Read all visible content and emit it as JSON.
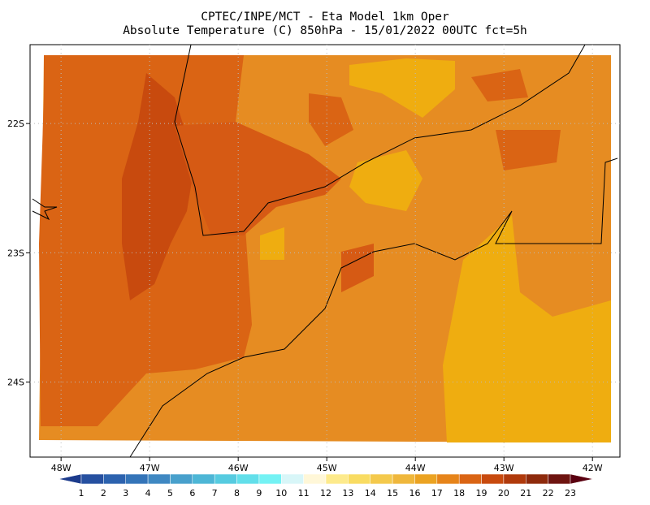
{
  "header": {
    "title": "CPTEC/INPE/MCT -  Eta Model 1km Oper",
    "subtitle": "Absolute Temperature (C) 850hPa - 15/01/2022 00UTC fct=5h"
  },
  "map": {
    "lonlim": [
      -48.35,
      -41.69
    ],
    "latlim": [
      -21.39,
      -24.58
    ],
    "lon_ticks": [
      {
        "value": -48,
        "label": "48W"
      },
      {
        "value": -47,
        "label": "47W"
      },
      {
        "value": -46,
        "label": "46W"
      },
      {
        "value": -45,
        "label": "45W"
      },
      {
        "value": -44,
        "label": "44W"
      },
      {
        "value": -43,
        "label": "43W"
      },
      {
        "value": -42,
        "label": "42W"
      }
    ],
    "lat_ticks": [
      {
        "value": -22,
        "label": "22S"
      },
      {
        "value": -23,
        "label": "23S"
      },
      {
        "value": -24,
        "label": "24S"
      }
    ],
    "grid": true
  },
  "colorbar": {
    "labels": [
      1,
      2,
      3,
      4,
      5,
      6,
      7,
      8,
      9,
      10,
      11,
      12,
      13,
      14,
      15,
      16,
      17,
      18,
      19,
      20,
      21,
      22,
      23
    ],
    "colors": [
      "#1c3b8c",
      "#2650a0",
      "#2c62ae",
      "#3474b8",
      "#3f88c2",
      "#48a0cc",
      "#4db6d6",
      "#56cbe0",
      "#62dfea",
      "#74f2f4",
      "#d8f6f8",
      "#fff7d8",
      "#fdea8c",
      "#f9dc62",
      "#f4c94c",
      "#efb73c",
      "#eba322",
      "#e6841a",
      "#da6414",
      "#c84a0e",
      "#b03a0c",
      "#8e2a0c",
      "#6e1410",
      "#5a0010"
    ]
  }
}
